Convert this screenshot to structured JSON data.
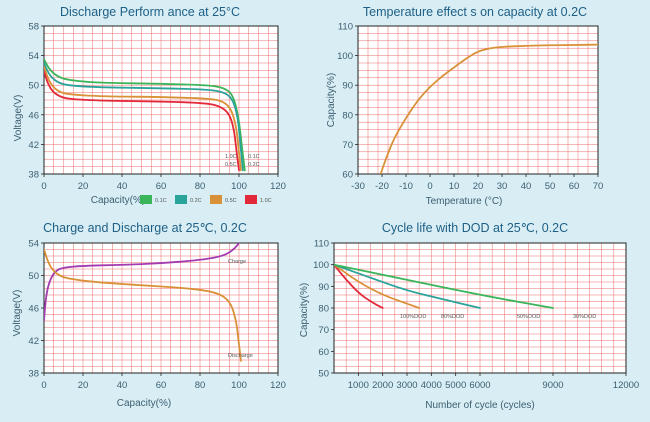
{
  "colors": {
    "background": "#d8eef4",
    "plot_bg": "#ffffff",
    "title": "#1f5f86",
    "axis_text": "#3d5e72",
    "grid": "#e23a3a",
    "frame": "#222222",
    "green": "#3bb55a",
    "teal": "#2aa39a",
    "orange": "#d99137",
    "red": "#e3283a",
    "magenta": "#a23bb0"
  },
  "chart_data": [
    {
      "id": "discharge",
      "type": "line",
      "title": "Discharge Perform ance at 25°C",
      "xlabel": "Capacity(%)",
      "ylabel": "Voltage(V)",
      "xlim": [
        0,
        120
      ],
      "ylim": [
        38,
        58
      ],
      "xticks": [
        0,
        20,
        40,
        60,
        80,
        100,
        120
      ],
      "yticks": [
        38,
        42,
        46,
        50,
        54,
        58
      ],
      "grid": true,
      "legend_position": "bottom",
      "series": [
        {
          "name": "0.1C",
          "color": "green",
          "x": [
            0,
            3,
            8,
            15,
            30,
            60,
            85,
            93,
            97,
            99.5,
            101,
            102,
            103
          ],
          "y": [
            53.5,
            52.0,
            51.0,
            50.6,
            50.3,
            50.2,
            50.0,
            49.6,
            48.6,
            46.0,
            43.0,
            40.5,
            38.5
          ]
        },
        {
          "name": "0.2C",
          "color": "teal",
          "x": [
            0,
            3,
            8,
            15,
            30,
            60,
            85,
            93,
            97,
            99.5,
            100.5,
            101.5,
            102
          ],
          "y": [
            53.0,
            51.2,
            50.2,
            49.9,
            49.7,
            49.6,
            49.4,
            49.0,
            48.0,
            45.5,
            42.5,
            40.0,
            38.5
          ]
        },
        {
          "name": "0.5C",
          "color": "orange",
          "x": [
            0,
            3,
            8,
            15,
            30,
            60,
            85,
            92,
            96,
            98.5,
            99.5,
            100.5,
            101
          ],
          "y": [
            52.5,
            50.2,
            49.0,
            48.7,
            48.5,
            48.4,
            48.2,
            47.8,
            46.8,
            44.5,
            42.0,
            39.8,
            38.5
          ]
        },
        {
          "name": "1.0C",
          "color": "red",
          "x": [
            0,
            3,
            8,
            15,
            30,
            60,
            82,
            90,
            95,
            97.5,
            98.5,
            99.5,
            100
          ],
          "y": [
            51.8,
            49.5,
            48.4,
            48.1,
            47.9,
            47.8,
            47.6,
            47.2,
            46.2,
            44.0,
            41.5,
            39.5,
            38.5
          ]
        }
      ],
      "annotations": [
        "1.0C",
        "0.1C",
        "0.5C",
        "0.2C"
      ]
    },
    {
      "id": "temperature",
      "type": "line",
      "title": "Temperature effect s on capacity at 0.2C",
      "xlabel": "Temperature (°C)",
      "ylabel": "Capacity(%)",
      "xlim": [
        -30,
        70
      ],
      "ylim": [
        60,
        110
      ],
      "xticks": [
        -30,
        -20,
        -10,
        0,
        10,
        20,
        30,
        40,
        50,
        60,
        70
      ],
      "yticks": [
        60,
        70,
        80,
        90,
        100,
        110
      ],
      "grid": true,
      "series": [
        {
          "color": "orange",
          "x": [
            -21,
            -18,
            -15,
            -10,
            -5,
            0,
            5,
            10,
            15,
            20,
            25,
            30,
            40,
            50,
            60,
            70
          ],
          "y": [
            59,
            66,
            72,
            79,
            85,
            89.5,
            93,
            96,
            99,
            101.5,
            102.5,
            103,
            103.3,
            103.5,
            103.6,
            103.7
          ]
        }
      ]
    },
    {
      "id": "charge_discharge",
      "type": "line",
      "title": "Charge and Discharge at 25℃, 0.2C",
      "xlabel": "Capacity(%)",
      "ylabel": "Voltage(V)",
      "xlim": [
        0,
        120
      ],
      "ylim": [
        38,
        54
      ],
      "xticks": [
        0,
        20,
        40,
        60,
        80,
        100,
        120
      ],
      "yticks": [
        38,
        42,
        46,
        50,
        54
      ],
      "grid": true,
      "series": [
        {
          "name": "Charge",
          "color": "magenta",
          "x": [
            0,
            1,
            3,
            6,
            10,
            20,
            40,
            60,
            80,
            90,
            95,
            98,
            100
          ],
          "y": [
            44.5,
            47.5,
            49.5,
            50.6,
            51.0,
            51.2,
            51.3,
            51.5,
            51.9,
            52.3,
            52.8,
            53.4,
            54.0
          ]
        },
        {
          "name": "Discharge",
          "color": "orange",
          "x": [
            0,
            3,
            8,
            15,
            30,
            50,
            70,
            85,
            92,
            96,
            98.5,
            99.5,
            100.5,
            101
          ],
          "y": [
            53.2,
            51.0,
            49.9,
            49.5,
            49.1,
            48.8,
            48.5,
            48.1,
            47.5,
            46.5,
            44.5,
            42.5,
            40.5,
            39.5
          ]
        }
      ],
      "annotations": [
        "Charge",
        "Discharge"
      ]
    },
    {
      "id": "cycle_life",
      "type": "line",
      "title": "Cycle life with DOD  at 25℃, 0.2C",
      "xlabel": "Number of cycle (cycles)",
      "ylabel": "Capacity(%)",
      "xlim": [
        0,
        12000
      ],
      "ylim": [
        50,
        110
      ],
      "xticks": [
        1000,
        2000,
        3000,
        4000,
        5000,
        6000,
        9000,
        12000
      ],
      "yticks": [
        50,
        60,
        70,
        80,
        90,
        100,
        110
      ],
      "grid": true,
      "series": [
        {
          "name": "100%DOD",
          "color": "red",
          "x": [
            0,
            500,
            1000,
            1500,
            2000
          ],
          "y": [
            100,
            93,
            87,
            83,
            80
          ]
        },
        {
          "name": "80%DOD",
          "color": "orange",
          "x": [
            0,
            1000,
            2000,
            3000,
            3500
          ],
          "y": [
            100,
            92,
            86,
            82,
            80
          ]
        },
        {
          "name": "50%DOD",
          "color": "teal",
          "x": [
            0,
            1500,
            3000,
            4500,
            6000
          ],
          "y": [
            100,
            94,
            88,
            84,
            80
          ]
        },
        {
          "name": "30%DOD",
          "color": "green",
          "x": [
            0,
            3000,
            6000,
            9000
          ],
          "y": [
            100,
            93,
            86,
            80
          ]
        }
      ],
      "annotations": [
        "100%DOD",
        "80%DOD",
        "50%DOD",
        "30%DOD"
      ]
    }
  ]
}
